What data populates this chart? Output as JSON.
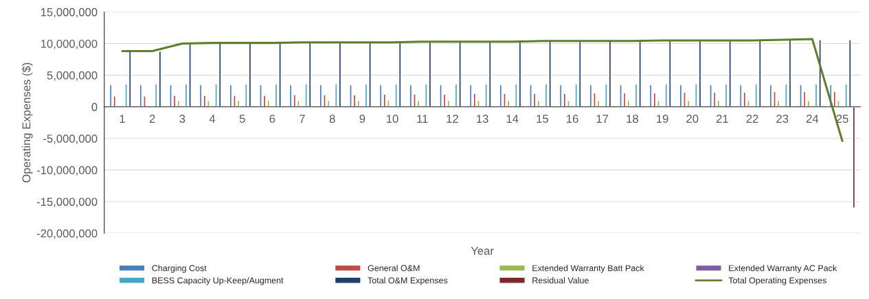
{
  "chart_data": {
    "type": "bar",
    "xlabel": "Year",
    "ylabel": "Operating Expenses ($)",
    "categories": [
      "1",
      "2",
      "3",
      "4",
      "5",
      "6",
      "7",
      "8",
      "9",
      "10",
      "11",
      "12",
      "13",
      "14",
      "15",
      "16",
      "17",
      "18",
      "19",
      "20",
      "21",
      "22",
      "23",
      "24",
      "25"
    ],
    "series": [
      {
        "name": "Charging Cost",
        "color": "#4a7ebb",
        "values": [
          3500000,
          3500000,
          3500000,
          3500000,
          3500000,
          3500000,
          3500000,
          3500000,
          3500000,
          3500000,
          3500000,
          3500000,
          3500000,
          3500000,
          3500000,
          3500000,
          3500000,
          3500000,
          3500000,
          3500000,
          3500000,
          3500000,
          3500000,
          3500000,
          3500000
        ]
      },
      {
        "name": "General O&M",
        "color": "#be4b48",
        "values": [
          1700000,
          1700000,
          1800000,
          1800000,
          1800000,
          1800000,
          1900000,
          1900000,
          1900000,
          2000000,
          2000000,
          2000000,
          2100000,
          2100000,
          2100000,
          2100000,
          2200000,
          2200000,
          2200000,
          2300000,
          2300000,
          2300000,
          2400000,
          2400000,
          2400000
        ]
      },
      {
        "name": "Extended Warranty Batt Pack",
        "color": "#98b954",
        "values": [
          null,
          null,
          1000000,
          1000000,
          1000000,
          1000000,
          1000000,
          1000000,
          1000000,
          1000000,
          1000000,
          1000000,
          1000000,
          1000000,
          1000000,
          1000000,
          1000000,
          1000000,
          1000000,
          1000000,
          1000000,
          1000000,
          1000000,
          1000000,
          1000000
        ]
      },
      {
        "name": "Extended Warranty AC Pack",
        "color": "#7d60a0",
        "values": [
          null,
          null,
          null,
          null,
          null,
          null,
          null,
          null,
          null,
          null,
          null,
          null,
          null,
          null,
          null,
          null,
          null,
          null,
          null,
          null,
          null,
          null,
          null,
          null,
          null
        ]
      },
      {
        "name": "BESS Capacity Up-Keep/Augment",
        "color": "#46aac5",
        "values": [
          3600000,
          3600000,
          3600000,
          3600000,
          3600000,
          3600000,
          3600000,
          3600000,
          3600000,
          3600000,
          3600000,
          3600000,
          3600000,
          3600000,
          3600000,
          3600000,
          3600000,
          3600000,
          3600000,
          3600000,
          3600000,
          3600000,
          3600000,
          3600000,
          3600000
        ]
      },
      {
        "name": "Total O&M Expenses",
        "color": "#1f3f6b",
        "values": [
          8800000,
          8800000,
          10000000,
          10100000,
          10100000,
          10100000,
          10200000,
          10200000,
          10200000,
          10200000,
          10300000,
          10300000,
          10300000,
          10300000,
          10400000,
          10400000,
          10400000,
          10400000,
          10500000,
          10500000,
          10500000,
          10500000,
          10600000,
          10600000,
          10600000
        ]
      },
      {
        "name": "Residual Value",
        "color": "#7b2a2a",
        "values": [
          null,
          null,
          null,
          null,
          null,
          null,
          null,
          null,
          null,
          null,
          null,
          null,
          null,
          null,
          null,
          null,
          null,
          null,
          null,
          null,
          null,
          null,
          null,
          null,
          -16000000
        ]
      },
      {
        "name": "Total Operating Expenses",
        "type": "line",
        "color": "#5f7f2a",
        "values": [
          8800000,
          8800000,
          10000000,
          10100000,
          10100000,
          10100000,
          10200000,
          10200000,
          10200000,
          10200000,
          10300000,
          10300000,
          10300000,
          10300000,
          10400000,
          10400000,
          10400000,
          10400000,
          10500000,
          10500000,
          10500000,
          10500000,
          10600000,
          10700000,
          -5400000
        ]
      }
    ],
    "ylim": [
      -20000000,
      15000000
    ],
    "yticks": [
      {
        "value": -20000000,
        "label": "-20,000,000"
      },
      {
        "value": -15000000,
        "label": "-15,000,000"
      },
      {
        "value": -10000000,
        "label": "-10,000,000"
      },
      {
        "value": -5000000,
        "label": "-5,000,000"
      },
      {
        "value": 0,
        "label": "0"
      },
      {
        "value": 5000000,
        "label": "5,000,000"
      },
      {
        "value": 10000000,
        "label": "10,000,000"
      },
      {
        "value": 15000000,
        "label": "15,000,000"
      }
    ],
    "grid": "y",
    "legend": "bottom"
  }
}
